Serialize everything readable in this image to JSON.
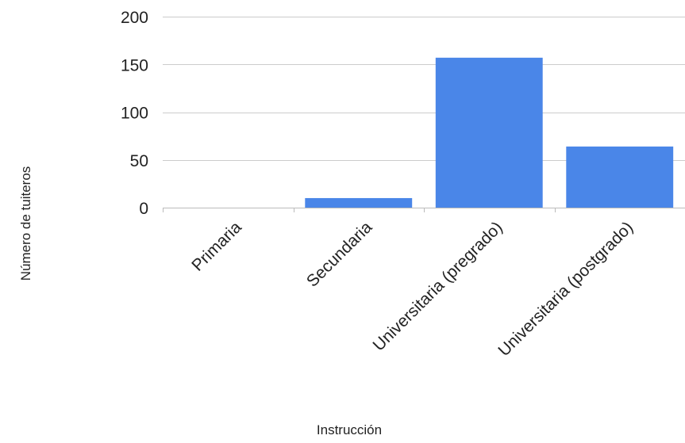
{
  "chart_data": {
    "type": "bar",
    "title": "",
    "xlabel": "Instrucción",
    "ylabel": "Número de tuiteros",
    "categories": [
      "Primaria",
      "Secundaria",
      "Universitaria (pregrado)",
      "Universitaria (postgrado)"
    ],
    "values": [
      0,
      10,
      157,
      64
    ],
    "ylim": [
      0,
      200
    ],
    "yticks": [
      0,
      50,
      100,
      150,
      200
    ],
    "grid": true,
    "legend": "none",
    "bar_color": "#4a86e8"
  }
}
